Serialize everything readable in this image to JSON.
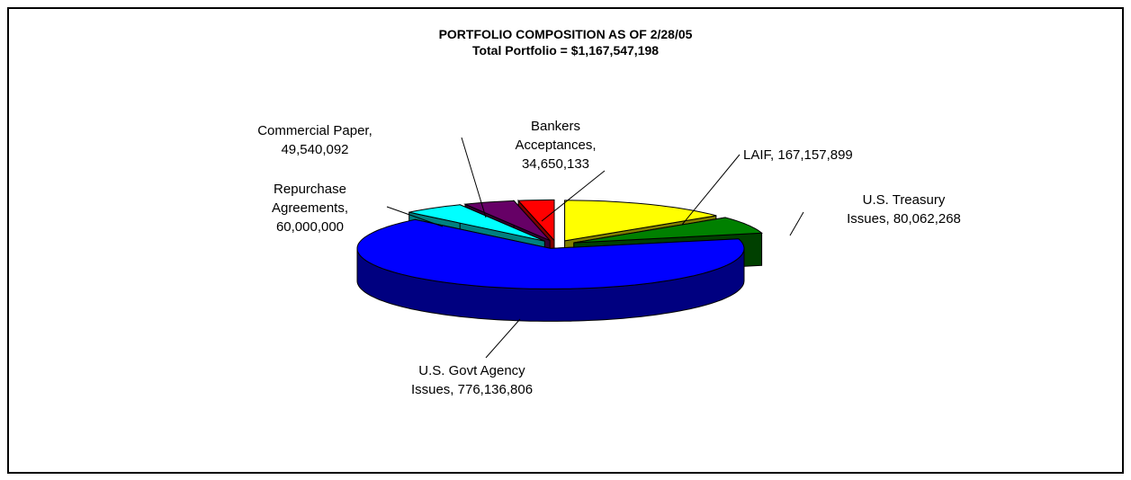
{
  "chart_data": {
    "type": "pie3d",
    "title": "PORTFOLIO COMPOSITION AS OF 2/28/05",
    "subtitle": "Total Portfolio = $1,167,547,198",
    "categories": [
      "LAIF,",
      "U.S. Treasury Issues,",
      "U.S. Govt Agency Issues,",
      "Repurchase Agreements,",
      "Commercial  Paper,",
      "Bankers Acceptances,"
    ],
    "values": [
      167157899,
      80062268,
      776136806,
      60000000,
      49540092,
      34650133
    ],
    "value_labels": [
      "167,157,899",
      "80,062,268",
      "776,136,806",
      "60,000,000",
      "49,540,092",
      "34,650,133"
    ],
    "colors": [
      "#ffff00",
      "#008000",
      "#0000ff",
      "#00ffff",
      "#660066",
      "#ff0000"
    ]
  }
}
